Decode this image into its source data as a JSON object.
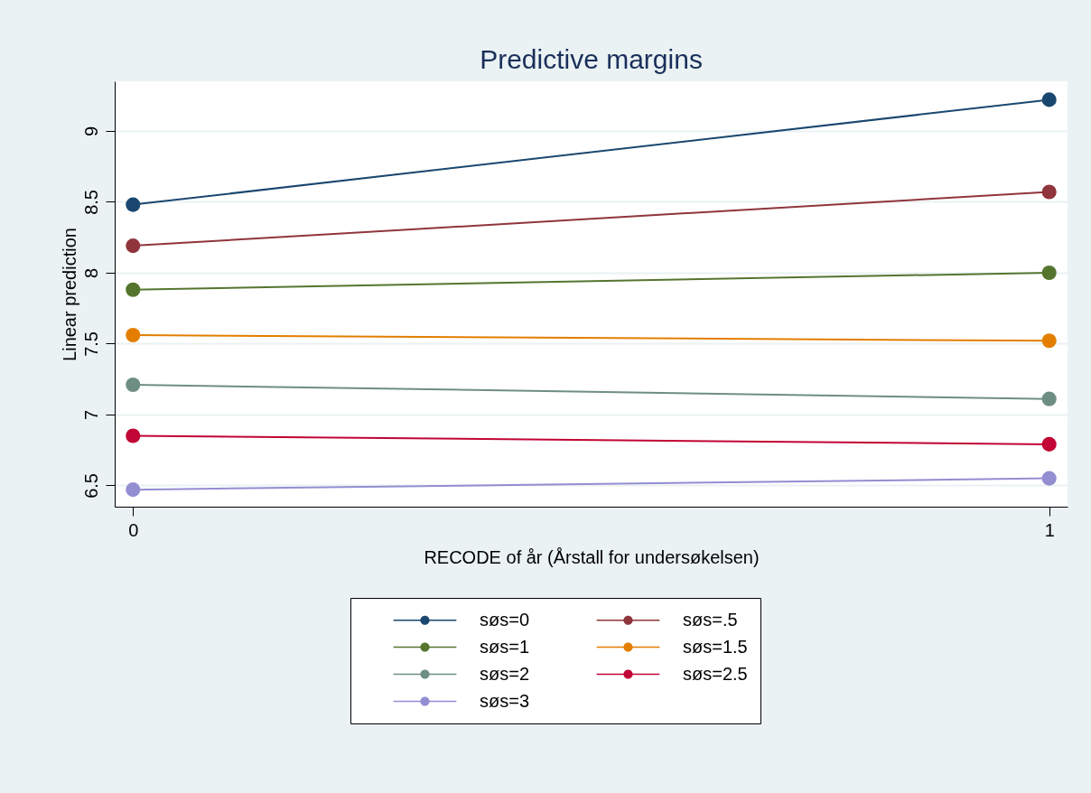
{
  "chart_data": {
    "type": "line",
    "title": "Predictive margins",
    "xlabel": "RECODE of år (Årstall for undersøkelsen)",
    "ylabel": "Linear prediction",
    "x": [
      0,
      1
    ],
    "xlim": [
      -0.02,
      1.02
    ],
    "xticks": [
      0,
      1
    ],
    "ylim": [
      6.35,
      9.35
    ],
    "yticks": [
      6.5,
      7,
      7.5,
      8,
      8.5,
      9
    ],
    "grid": "y",
    "legend": "bottom",
    "marker": "circle",
    "line_style": "solid",
    "series": [
      {
        "name": "søs=0",
        "color": "#1a476f",
        "values": [
          8.48,
          9.22
        ]
      },
      {
        "name": "søs=.5",
        "color": "#90353b",
        "values": [
          8.19,
          8.57
        ]
      },
      {
        "name": "søs=1",
        "color": "#55752f",
        "values": [
          7.88,
          8.0
        ]
      },
      {
        "name": "søs=1.5",
        "color": "#e37e00",
        "values": [
          7.56,
          7.52
        ]
      },
      {
        "name": "søs=2",
        "color": "#6e8e84",
        "values": [
          7.21,
          7.11
        ]
      },
      {
        "name": "søs=2.5",
        "color": "#c10534",
        "values": [
          6.85,
          6.79
        ]
      },
      {
        "name": "søs=3",
        "color": "#938dd2",
        "values": [
          6.47,
          6.55
        ]
      }
    ]
  }
}
